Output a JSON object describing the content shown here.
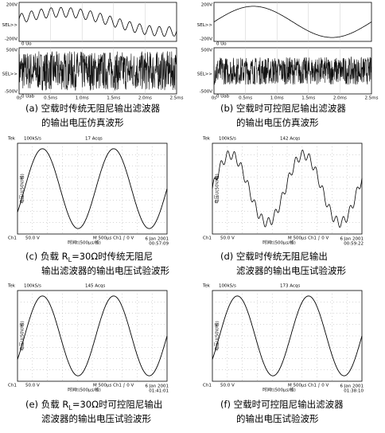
{
  "panels": [
    {
      "caption": [
        [
          "(a)  空载时传统无阻尼输出滤波器"
        ],
        [
          "的输出电压仿真波形"
        ]
      ],
      "upper": [
        "200V",
        "SEL>>",
        "-200V",
        "0 Uo"
      ],
      "lower": [
        "500V",
        "SEL>>",
        "-500V",
        "0 Uab"
      ],
      "ticks": [
        "0s",
        "0.5ms",
        "1.0ms",
        "1.5ms",
        "2.0ms",
        "2.5ms"
      ]
    },
    {
      "caption": [
        [
          "(b)  空载时可控阻尼输出滤波器"
        ],
        [
          "的输出电压仿真波形"
        ]
      ],
      "upper": [
        "200V",
        "SEL>>",
        "-200V",
        "0 Uo"
      ],
      "lower": [
        "500V",
        "SEL>>",
        "-500V",
        "0 Uab"
      ],
      "ticks": [
        "0s",
        "0.5ms",
        "1.0ms",
        "1.5ms",
        "2.0ms",
        "2.5ms"
      ]
    },
    {
      "caption": [
        [
          "(c)  负载 R",
          "L",
          "=30Ω时传统无阻尼"
        ],
        [
          "输出滤波器的输出电压试验波形"
        ]
      ],
      "header": [
        "Tek",
        "100kS/s",
        "17 Acqs"
      ],
      "footer": [
        "Ch1",
        "50.0 V",
        "M 500μs Ch1 ∫ 0 V",
        "6 Jan 2001",
        "00:57:09"
      ],
      "xlabel": "时间t(500μs/格)",
      "ylabel": "电压U(50V/格)"
    },
    {
      "caption": [
        [
          "(d)  空载时传统无阻尼输出"
        ],
        [
          "滤波器的输出电压试验波形"
        ]
      ],
      "header": [
        "Tek",
        "100kS/s",
        "142 Acqs"
      ],
      "footer": [
        "Ch1",
        "50.0 V",
        "M 500μs Ch1 ∫ 0 V",
        "6 Jan 2001",
        "00:59:22"
      ],
      "xlabel": "时间t(500μs/格)",
      "ylabel": "电压U(50V/格)"
    },
    {
      "caption": [
        [
          "(e)  负载 R",
          "L",
          "=30Ω时可控阻尼输出"
        ],
        [
          "滤波器的输出电压试验波形"
        ]
      ],
      "header": [
        "Tek",
        "100kS/s",
        "145 Acqs"
      ],
      "footer": [
        "Ch1",
        "50.0 V",
        "M 500μs Ch1 ∫ 0 V",
        "6 Jan 2001",
        "01:41:01"
      ],
      "xlabel": "时间t(500μs/格)",
      "ylabel": "电压U(50V/格)"
    },
    {
      "caption": [
        [
          "(f)  空载时可控阻尼输出滤波器"
        ],
        [
          "的输出电压试验波形"
        ]
      ],
      "header": [
        "Tek",
        "100kS/s",
        "173 Acqs"
      ],
      "footer": [
        "Ch1",
        "50.0 V",
        "M 500μs Ch1 ∫ 0 V",
        "6 Jan 2001",
        "01:38:10"
      ],
      "xlabel": "时间t(500μs/格)",
      "ylabel": "电压U(50V/格)"
    }
  ]
}
